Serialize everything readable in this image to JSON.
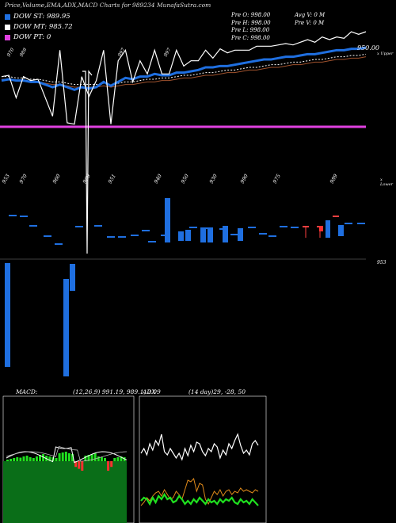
{
  "header": {
    "title": "Price,Volume,EMA,ADX,MACD Charts for 989234",
    "site": "MunafaSutra.com"
  },
  "legend": [
    {
      "label": "DOW ST: 989.95",
      "color": "#1f6fe0"
    },
    {
      "label": "DOW MT: 985.72",
      "color": "#ffffff"
    },
    {
      "label": "DOW PT: 0",
      "color": "#e040e0"
    }
  ],
  "stats": {
    "prev_col": [
      "Pre O: 998.00",
      "Pre H: 998.00",
      "Pre L: 998.00",
      "Pre C: 998.00"
    ],
    "avg_col": [
      "Avg V: 0 M",
      "Pre V: 0 M"
    ]
  },
  "price_labels": {
    "current": "950.00",
    "upper": "x Upper",
    "lower": "x Lower",
    "volume_right": "953"
  },
  "chart_data": [
    {
      "type": "line",
      "name": "price",
      "x_tick_labels": [
        "953",
        "970",
        "960",
        "969",
        "951",
        "940",
        "950",
        "930",
        "990",
        "975",
        "989"
      ],
      "top_tick_labels": [
        "970",
        "989",
        "997",
        "997"
      ],
      "series": [
        {
          "name": "Close",
          "values": [
            978,
            979,
            962,
            978,
            975,
            976,
            962,
            948,
            998,
            943,
            942,
            978,
            963,
            975,
            998,
            942,
            990,
            998,
            974,
            990,
            980,
            998,
            980,
            980,
            998,
            986,
            990,
            990,
            998,
            992,
            999,
            996,
            998,
            998,
            998,
            1001,
            1001,
            1001,
            1002,
            1003,
            1002,
            1004,
            1006,
            1004,
            1008,
            1006,
            1008,
            1007,
            1012,
            1010,
            1012
          ]
        },
        {
          "name": "DOW ST",
          "values": [
            975,
            976,
            975,
            975,
            974,
            974,
            972,
            970,
            972,
            970,
            968,
            970,
            969,
            970,
            974,
            971,
            974,
            977,
            976,
            978,
            978,
            980,
            979,
            979,
            981,
            981,
            982,
            983,
            985,
            985,
            986,
            986,
            987,
            988,
            989,
            990,
            991,
            991,
            992,
            993,
            993,
            994,
            995,
            995,
            996,
            997,
            998,
            998,
            999,
            999,
            1000
          ]
        },
        {
          "name": "DOW MT",
          "values": [
            978,
            978,
            977,
            977,
            976,
            976,
            975,
            974,
            974,
            973,
            972,
            972,
            972,
            972,
            973,
            972,
            973,
            974,
            974,
            975,
            976,
            976,
            977,
            977,
            978,
            979,
            979,
            980,
            981,
            981,
            982,
            983,
            983,
            984,
            985,
            985,
            986,
            987,
            987,
            988,
            989,
            989,
            990,
            991,
            991,
            992,
            993,
            993,
            994,
            994,
            995
          ]
        }
      ],
      "pt_value": 0
    },
    {
      "type": "bar",
      "name": "volume",
      "values": [
        0,
        0,
        0,
        0,
        0,
        0,
        0,
        0,
        0,
        0,
        0,
        0,
        0,
        0,
        0,
        0,
        0,
        0,
        0,
        0,
        0,
        0,
        0,
        0,
        0,
        0,
        0,
        0,
        0,
        0,
        0,
        0,
        0,
        0,
        0,
        0,
        0,
        0,
        0,
        0,
        0,
        0,
        0,
        0,
        0,
        0,
        0,
        0,
        0,
        0,
        0
      ]
    },
    {
      "type": "line",
      "name": "MACD",
      "title": "MACD:",
      "params": "(12,26,9) 991.19, 989.1, 2.09"
    },
    {
      "type": "line",
      "name": "ADX",
      "title": "ADX",
      "params": "(14 day)29, -28, 50"
    }
  ]
}
